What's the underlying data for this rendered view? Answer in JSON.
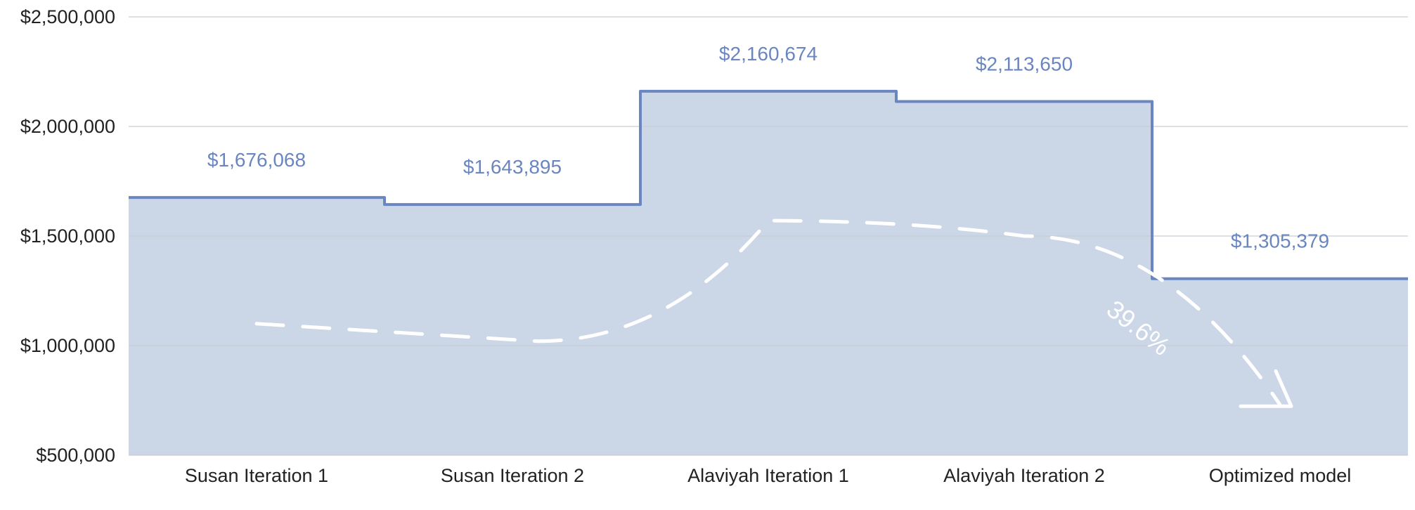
{
  "chart_data": {
    "type": "area",
    "step": true,
    "categories": [
      "Susan Iteration 1",
      "Susan Iteration 2",
      "Alaviyah Iteration 1",
      "Alaviyah Iteration 2",
      "Optimized model"
    ],
    "series": [
      {
        "values": [
          1676068,
          1643895,
          2160674,
          2113650,
          1305379
        ],
        "labels": [
          "$1,676,068",
          "$1,643,895",
          "$2,160,674",
          "$2,113,650",
          "$1,305,379"
        ]
      }
    ],
    "ylim": [
      500000,
      2500000
    ],
    "y_ticks": [
      500000,
      1000000,
      1500000,
      2000000,
      2500000
    ],
    "y_tick_labels": [
      "$500,000",
      "$1,000,000",
      "$1,500,000",
      "$2,000,000",
      "$2,500,000"
    ],
    "grid": true,
    "annotation": {
      "text": "39.6%",
      "style": "dashed white arrow",
      "path": [
        {
          "x": 0.0,
          "y": 1100000
        },
        {
          "x": 1.1,
          "y": 1020000
        },
        {
          "x": 2.0,
          "y": 1570000
        },
        {
          "x": 3.0,
          "y": 1500000
        },
        {
          "x": 4.0,
          "y": 730000
        }
      ]
    },
    "colors": {
      "fill": "#cbd6e6",
      "line": "#6a86c1",
      "data_label": "#6a86c1",
      "grid": "#c7cdd6",
      "annotation": "#ffffff"
    }
  }
}
